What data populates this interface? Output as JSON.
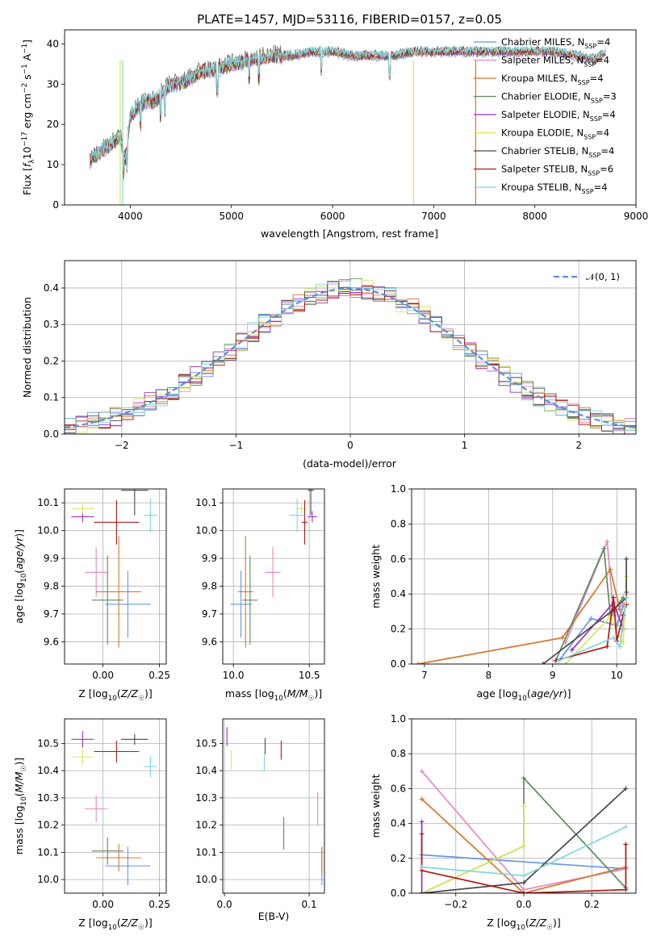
{
  "chart_data": [
    {
      "id": "spectrum",
      "type": "line",
      "title": "PLATE=1457, MJD=53116, FIBERID=0157, z=0.05",
      "xlabel": "wavelength [Angstrom, rest frame]",
      "ylabel": "Flux [f_λ10^-17 erg cm^-2 s^-1 A^-1]",
      "xlim": [
        3350,
        9000
      ],
      "ylim": [
        0,
        43.5
      ],
      "xticks": [
        "4000",
        "5000",
        "6000",
        "7000",
        "8000",
        "9000"
      ],
      "yticks": [
        "0",
        "10",
        "20",
        "30",
        "40"
      ],
      "grid": false,
      "legend_position": "top-right",
      "series": [
        {
          "name": "Chabrier MILES, N_SSP=4",
          "color": "#6495ed"
        },
        {
          "name": "Salpeter MILES, N_SSP=4",
          "color": "#e887c3"
        },
        {
          "name": "Kroupa MILES, N_SSP=4",
          "color": "#d9752a"
        },
        {
          "name": "Chabrier ELODIE, N_SSP=3",
          "color": "#5e8c5c"
        },
        {
          "name": "Salpeter ELODIE, N_SSP=4",
          "color": "#9b30c0"
        },
        {
          "name": "Kroupa ELODIE, N_SSP=4",
          "color": "#d8e85a"
        },
        {
          "name": "Chabrier STELIB, N_SSP=4",
          "color": "#4a4a4a"
        },
        {
          "name": "Salpeter STELIB, N_SSP=6",
          "color": "#b01919"
        },
        {
          "name": "Kroupa STELIB, N_SSP=4",
          "color": "#7fd8de"
        }
      ],
      "continuum": {
        "x": [
          3600,
          3750,
          3900,
          3950,
          4000,
          4100,
          4250,
          4400,
          4500,
          4700,
          4900,
          5000,
          5200,
          5400,
          5600,
          5800,
          6000,
          6200,
          6400,
          6600,
          6800,
          7000,
          7200,
          7400,
          7600,
          7800,
          8000,
          8200,
          8400,
          8600,
          8700
        ],
        "y": [
          11,
          14,
          17,
          11,
          22,
          25,
          26,
          30,
          30,
          33,
          34,
          35,
          36,
          37,
          37,
          38,
          38,
          37,
          37,
          37,
          38,
          38,
          38,
          38,
          38,
          38,
          38,
          38,
          37,
          36,
          38
        ]
      }
    },
    {
      "id": "residuals",
      "type": "histogram",
      "xlabel": "(data-model)/error",
      "ylabel": "Normed distribution",
      "xlim": [
        -2.5,
        2.5
      ],
      "ylim": [
        0,
        0.475
      ],
      "xticks": [
        "−2",
        "−1",
        "0",
        "1",
        "2"
      ],
      "yticks": [
        "0.0",
        "0.1",
        "0.2",
        "0.3",
        "0.4"
      ],
      "grid": true,
      "legend_position": "top-right",
      "legend": "𝒩(0, 1)",
      "reference_color": "#5b8fd8",
      "bin_width": 0.1
    },
    {
      "id": "age-vs-Z",
      "type": "scatter",
      "xlabel": "Z [log10(Z/Z☉)]",
      "ylabel": "age  [log10(age/yr)]",
      "xlim": [
        -0.17,
        0.28
      ],
      "ylim": [
        9.52,
        10.15
      ],
      "xticks": [
        "0.00",
        "0.25"
      ],
      "yticks": [
        "9.6",
        "9.7",
        "9.8",
        "9.9",
        "10.0",
        "10.1"
      ],
      "grid": true,
      "points": [
        {
          "x": 0.11,
          "y": 9.735,
          "xerr": 0.1,
          "yerr": 0.12,
          "color": "#6495ed"
        },
        {
          "x": -0.03,
          "y": 9.85,
          "xerr": 0.05,
          "yerr": 0.09,
          "color": "#e887c3"
        },
        {
          "x": 0.07,
          "y": 9.78,
          "xerr": 0.1,
          "yerr": 0.2,
          "color": "#d9752a"
        },
        {
          "x": 0.02,
          "y": 9.75,
          "xerr": 0.07,
          "yerr": 0.16,
          "color": "#5e8c5c"
        },
        {
          "x": -0.09,
          "y": 10.05,
          "xerr": 0.05,
          "yerr": 0.02,
          "color": "#9b30c0"
        },
        {
          "x": -0.09,
          "y": 10.08,
          "xerr": 0.05,
          "yerr": 0.02,
          "color": "#d8e85a"
        },
        {
          "x": 0.14,
          "y": 10.145,
          "xerr": 0.06,
          "yerr": 0.09,
          "color": "#4a4a4a"
        },
        {
          "x": 0.06,
          "y": 10.03,
          "xerr": 0.1,
          "yerr": 0.08,
          "color": "#b01919"
        },
        {
          "x": 0.21,
          "y": 10.055,
          "xerr": 0.03,
          "yerr": 0.06,
          "color": "#7fd8de"
        }
      ]
    },
    {
      "id": "age-vs-mass",
      "type": "scatter",
      "xlabel": "mass [log10(M/M☉)]",
      "ylabel": "",
      "xlim": [
        9.93,
        10.6
      ],
      "ylim": [
        9.52,
        10.15
      ],
      "xticks": [
        "10.0",
        "10.5"
      ],
      "yticks": [
        "9.6",
        "9.7",
        "9.8",
        "9.9",
        "10.0",
        "10.1"
      ],
      "grid": true,
      "points": [
        {
          "x": 10.05,
          "y": 9.735,
          "xerr": 0.07,
          "yerr": 0.12,
          "color": "#6495ed"
        },
        {
          "x": 10.26,
          "y": 9.85,
          "xerr": 0.05,
          "yerr": 0.09,
          "color": "#e887c3"
        },
        {
          "x": 10.08,
          "y": 9.78,
          "xerr": 0.05,
          "yerr": 0.2,
          "color": "#d9752a"
        },
        {
          "x": 10.11,
          "y": 9.75,
          "xerr": 0.05,
          "yerr": 0.16,
          "color": "#5e8c5c"
        },
        {
          "x": 10.52,
          "y": 10.05,
          "xerr": 0.03,
          "yerr": 0.02,
          "color": "#9b30c0"
        },
        {
          "x": 10.45,
          "y": 10.08,
          "xerr": 0.03,
          "yerr": 0.02,
          "color": "#d8e85a"
        },
        {
          "x": 10.51,
          "y": 10.145,
          "xerr": 0.02,
          "yerr": 0.09,
          "color": "#4a4a4a"
        },
        {
          "x": 10.47,
          "y": 10.03,
          "xerr": 0.02,
          "yerr": 0.08,
          "color": "#b01919"
        },
        {
          "x": 10.42,
          "y": 10.055,
          "xerr": 0.05,
          "yerr": 0.06,
          "color": "#7fd8de"
        }
      ]
    },
    {
      "id": "massweight-vs-age",
      "type": "line",
      "xlabel": "age  [log10(age/yr)]",
      "ylabel": "mass weight",
      "xlim": [
        6.8,
        10.3
      ],
      "ylim": [
        0,
        1.0
      ],
      "xticks": [
        "7",
        "8",
        "9",
        "10"
      ],
      "yticks": [
        "0.0",
        "0.2",
        "0.4",
        "0.6",
        "0.8",
        "1.0"
      ],
      "grid": true,
      "series": [
        {
          "color": "#6495ed",
          "x": [
            9.1,
            9.6,
            10.0,
            10.1
          ],
          "y": [
            0.02,
            0.26,
            0.22,
            0.33
          ]
        },
        {
          "color": "#e887c3",
          "x": [
            9.2,
            9.85,
            9.95,
            10.1
          ],
          "y": [
            0.12,
            0.7,
            0.28,
            0.35
          ]
        },
        {
          "color": "#d9752a",
          "x": [
            6.9,
            9.15,
            9.9,
            10.05
          ],
          "y": [
            0.0,
            0.15,
            0.54,
            0.31
          ]
        },
        {
          "color": "#5e8c5c",
          "x": [
            9.05,
            9.8,
            9.9,
            10.1
          ],
          "y": [
            0.02,
            0.66,
            0.28,
            0.38
          ]
        },
        {
          "color": "#9b30c0",
          "x": [
            9.3,
            9.95,
            10.1,
            10.15
          ],
          "y": [
            0.08,
            0.35,
            0.2,
            0.41
          ]
        },
        {
          "color": "#d8e85a",
          "x": [
            9.2,
            9.9,
            10.1,
            10.15
          ],
          "y": [
            0.0,
            0.27,
            0.12,
            0.5
          ]
        },
        {
          "color": "#4a4a4a",
          "x": [
            8.85,
            9.95,
            10.15,
            10.15
          ],
          "y": [
            0.0,
            0.31,
            0.38,
            0.6
          ]
        },
        {
          "color": "#b01919",
          "x": [
            9.05,
            9.85,
            9.95,
            10.0,
            10.1,
            10.15
          ],
          "y": [
            0.02,
            0.1,
            0.38,
            0.13,
            0.28,
            0.34
          ]
        },
        {
          "color": "#7fd8de",
          "x": [
            9.1,
            9.95,
            10.05,
            10.15
          ],
          "y": [
            0.02,
            0.15,
            0.1,
            0.38
          ]
        }
      ]
    },
    {
      "id": "mass-vs-Z",
      "type": "scatter",
      "xlabel": "Z [log10(Z/Z☉)]",
      "ylabel": "mass [log10(M/M☉)]",
      "xlim": [
        -0.17,
        0.28
      ],
      "ylim": [
        9.95,
        10.59
      ],
      "xticks": [
        "0.00",
        "0.25"
      ],
      "yticks": [
        "10.0",
        "10.1",
        "10.2",
        "10.3",
        "10.4",
        "10.5"
      ],
      "grid": true,
      "points": [
        {
          "x": 0.11,
          "y": 10.05,
          "xerr": 0.1,
          "yerr": 0.07,
          "color": "#6495ed"
        },
        {
          "x": -0.03,
          "y": 10.26,
          "xerr": 0.05,
          "yerr": 0.05,
          "color": "#e887c3"
        },
        {
          "x": 0.07,
          "y": 10.08,
          "xerr": 0.1,
          "yerr": 0.05,
          "color": "#d9752a"
        },
        {
          "x": 0.02,
          "y": 10.105,
          "xerr": 0.07,
          "yerr": 0.05,
          "color": "#5e8c5c"
        },
        {
          "x": -0.09,
          "y": 10.515,
          "xerr": 0.05,
          "yerr": 0.03,
          "color": "#9b30c0"
        },
        {
          "x": -0.09,
          "y": 10.45,
          "xerr": 0.05,
          "yerr": 0.03,
          "color": "#d8e85a"
        },
        {
          "x": 0.14,
          "y": 10.515,
          "xerr": 0.06,
          "yerr": 0.02,
          "color": "#4a4a4a"
        },
        {
          "x": 0.06,
          "y": 10.47,
          "xerr": 0.1,
          "yerr": 0.04,
          "color": "#b01919"
        },
        {
          "x": 0.21,
          "y": 10.415,
          "xerr": 0.03,
          "yerr": 0.04,
          "color": "#7fd8de"
        }
      ]
    },
    {
      "id": "mass-vs-EBV",
      "type": "scatter",
      "xlabel": "E(B-V)",
      "ylabel": "",
      "xlim": [
        -0.002,
        0.118
      ],
      "ylim": [
        9.95,
        10.59
      ],
      "xticks": [
        "0.0",
        "0.1"
      ],
      "yticks": [
        "10.0",
        "10.1",
        "10.2",
        "10.3",
        "10.4",
        "10.5"
      ],
      "grid": true,
      "points": [
        {
          "x": 0.115,
          "y": 10.05,
          "xerr": 0.0,
          "yerr": 0.07,
          "color": "#6495ed"
        },
        {
          "x": 0.11,
          "y": 10.26,
          "xerr": 0.0,
          "yerr": 0.06,
          "color": "#e887c3"
        },
        {
          "x": 0.115,
          "y": 10.07,
          "xerr": 0.0,
          "yerr": 0.05,
          "color": "#d9752a"
        },
        {
          "x": 0.07,
          "y": 10.17,
          "xerr": 0.0,
          "yerr": 0.06,
          "color": "#5e8c5c"
        },
        {
          "x": 0.003,
          "y": 10.525,
          "xerr": 0.0,
          "yerr": 0.035,
          "color": "#9b30c0"
        },
        {
          "x": 0.008,
          "y": 10.44,
          "xerr": 0.0,
          "yerr": 0.035,
          "color": "#d8e85a"
        },
        {
          "x": 0.048,
          "y": 10.49,
          "xerr": 0.0,
          "yerr": 0.03,
          "color": "#4a4a4a"
        },
        {
          "x": 0.067,
          "y": 10.475,
          "xerr": 0.0,
          "yerr": 0.035,
          "color": "#b01919"
        },
        {
          "x": 0.047,
          "y": 10.43,
          "xerr": 0.0,
          "yerr": 0.03,
          "color": "#7fd8de"
        }
      ]
    },
    {
      "id": "massweight-vs-Z",
      "type": "line",
      "xlabel": "Z [log10(Z/Z☉)]",
      "ylabel": "mass weight",
      "xlim": [
        -0.33,
        0.33
      ],
      "ylim": [
        0,
        1.0
      ],
      "xticks": [
        "−0.2",
        "0.0",
        "0.2"
      ],
      "yticks": [
        "0.0",
        "0.2",
        "0.4",
        "0.6",
        "0.8",
        "1.0"
      ],
      "grid": true,
      "series": [
        {
          "color": "#6495ed",
          "x": [
            -0.3,
            0.3
          ],
          "y": [
            0.22,
            0.14
          ]
        },
        {
          "color": "#e887c3",
          "x": [
            -0.3,
            0.0,
            0.3
          ],
          "y": [
            0.7,
            0.02,
            0.14
          ]
        },
        {
          "color": "#d9752a",
          "x": [
            -0.3,
            0.0,
            0.3
          ],
          "y": [
            0.54,
            0.0,
            0.15
          ]
        },
        {
          "color": "#5e8c5c",
          "x": [
            -0.3,
            -0.3,
            0.0,
            0.0,
            0.3
          ],
          "y": [
            0.0,
            0.0,
            0.27,
            0.66,
            0.03
          ]
        },
        {
          "color": "#9b30c0",
          "x": [
            -0.3,
            -0.3
          ],
          "y": [
            0.0,
            0.41
          ]
        },
        {
          "color": "#d8e85a",
          "x": [
            -0.3,
            0.0,
            0.0
          ],
          "y": [
            0.0,
            0.27,
            0.5
          ]
        },
        {
          "color": "#4a4a4a",
          "x": [
            -0.3,
            0.0,
            0.3
          ],
          "y": [
            0.0,
            0.06,
            0.6
          ]
        },
        {
          "color": "#b01919",
          "x": [
            -0.3,
            -0.3,
            0.0,
            0.3,
            0.3
          ],
          "y": [
            0.34,
            0.13,
            0.0,
            0.02,
            0.28
          ]
        },
        {
          "color": "#7fd8de",
          "x": [
            -0.3,
            0.0,
            0.3
          ],
          "y": [
            0.15,
            0.1,
            0.38
          ]
        }
      ]
    }
  ]
}
